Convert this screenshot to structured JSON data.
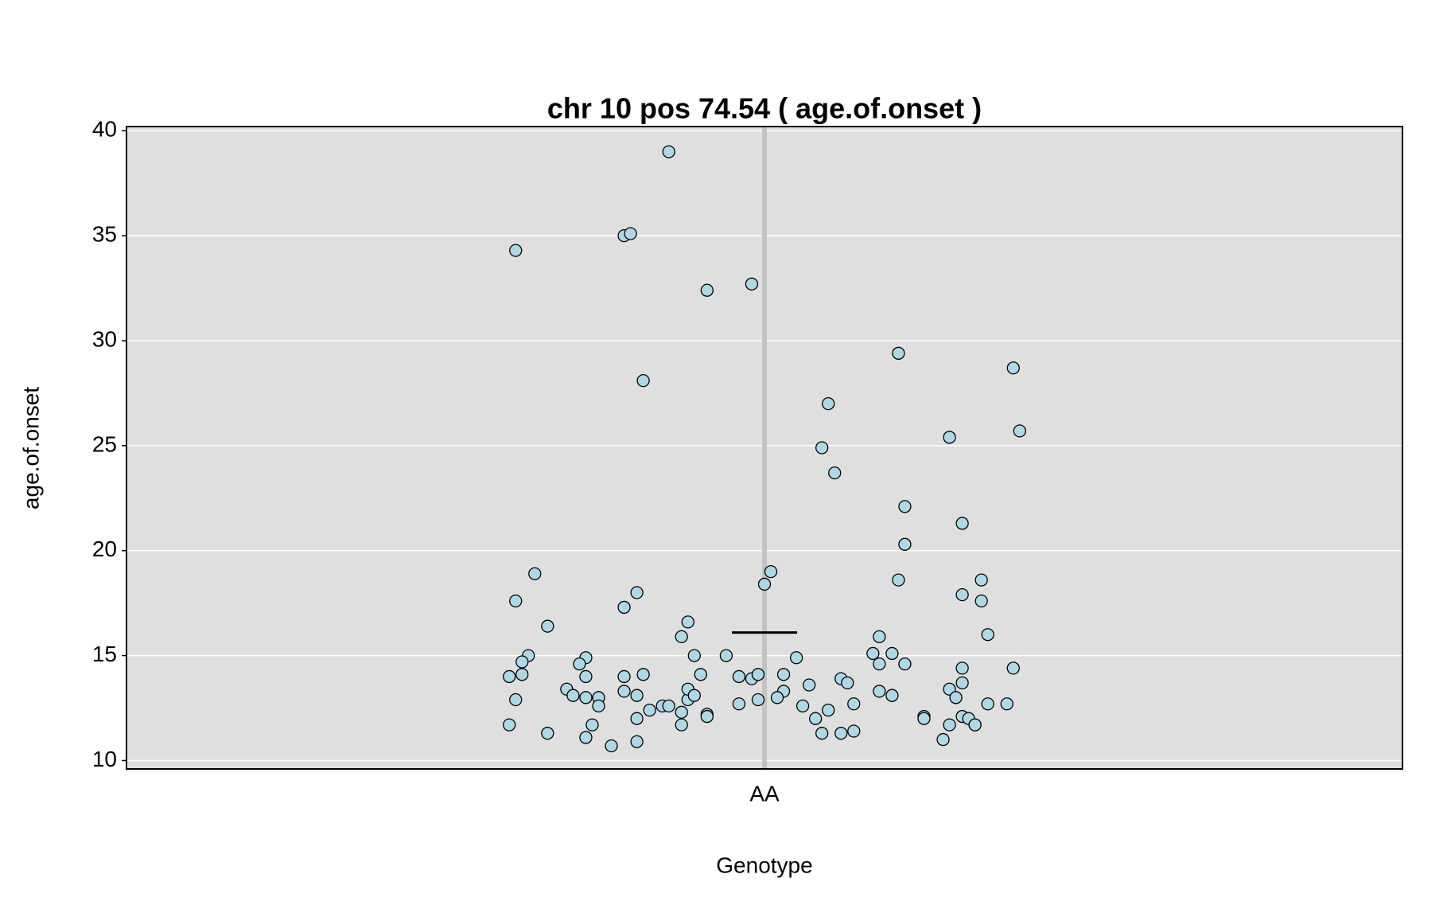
{
  "chart_data": {
    "type": "scatter",
    "title": "chr 10 pos 74.54 ( age.of.onset )",
    "x_label": "Genotype",
    "y_label": "age.of.onset",
    "xlim": [
      0,
      2
    ],
    "xticks": [
      {
        "value": 1,
        "label": "AA"
      }
    ],
    "ylim": [
      9.6,
      40.2
    ],
    "yticks": [
      10,
      15,
      20,
      25,
      30,
      35,
      40
    ],
    "grid": true,
    "color": "#add8e6",
    "mean": 16.1,
    "x": [
      0.61,
      0.78,
      0.79,
      0.85,
      0.91,
      0.98,
      0.81,
      1.21,
      1.39,
      1.1,
      1.09,
      1.11,
      1.29,
      1.4,
      1.22,
      1.31,
      1.22,
      0.64,
      0.61,
      0.66,
      0.78,
      0.8,
      0.88,
      0.87,
      1.01,
      1.0,
      1.21,
      1.34,
      1.31,
      1.34,
      1.35,
      1.18,
      0.63,
      0.62,
      0.6,
      0.62,
      0.61,
      0.6,
      0.66,
      0.72,
      0.71,
      0.72,
      0.69,
      0.7,
      0.72,
      0.74,
      0.74,
      0.73,
      0.72,
      0.76,
      0.78,
      0.81,
      0.78,
      0.8,
      0.82,
      0.8,
      0.8,
      0.84,
      0.85,
      0.87,
      0.88,
      0.88,
      0.89,
      0.87,
      0.89,
      0.9,
      0.91,
      0.91,
      0.94,
      0.96,
      0.98,
      0.99,
      0.99,
      0.96,
      1.03,
      1.05,
      1.03,
      1.02,
      1.06,
      1.07,
      1.08,
      1.09,
      1.1,
      1.12,
      1.13,
      1.14,
      1.14,
      1.12,
      1.17,
      1.18,
      1.2,
      1.22,
      1.18,
      1.2,
      1.25,
      1.25,
      1.29,
      1.3,
      1.31,
      1.31,
      1.31,
      1.32,
      1.33,
      1.33,
      1.29,
      1.28,
      1.35,
      1.38,
      1.39
    ],
    "values": [
      34.3,
      35.0,
      35.1,
      39.0,
      32.4,
      32.7,
      28.1,
      29.4,
      28.7,
      27.0,
      24.9,
      23.7,
      25.4,
      25.7,
      22.1,
      21.3,
      20.3,
      18.9,
      17.6,
      16.4,
      17.3,
      18.0,
      16.6,
      15.9,
      19.0,
      18.4,
      18.6,
      18.6,
      17.9,
      17.6,
      16.0,
      15.9,
      15.0,
      14.7,
      14.0,
      14.1,
      12.9,
      11.7,
      11.3,
      14.9,
      14.6,
      14.0,
      13.4,
      13.1,
      13.0,
      13.0,
      12.6,
      11.7,
      11.1,
      10.7,
      14.0,
      14.1,
      13.3,
      13.1,
      12.4,
      12.0,
      10.9,
      12.6,
      12.6,
      12.3,
      12.9,
      13.4,
      13.1,
      11.7,
      15.0,
      14.1,
      12.2,
      12.1,
      15.0,
      14.0,
      13.9,
      14.1,
      12.9,
      12.7,
      14.1,
      14.9,
      13.3,
      13.0,
      12.6,
      13.6,
      12.0,
      11.3,
      12.4,
      13.9,
      13.7,
      12.7,
      11.4,
      11.3,
      15.1,
      14.6,
      15.1,
      14.6,
      13.3,
      13.1,
      12.1,
      12.0,
      13.4,
      13.0,
      14.4,
      13.7,
      12.1,
      12.0,
      11.7,
      11.7,
      11.7,
      11.0,
      12.7,
      12.7,
      14.4
    ]
  }
}
